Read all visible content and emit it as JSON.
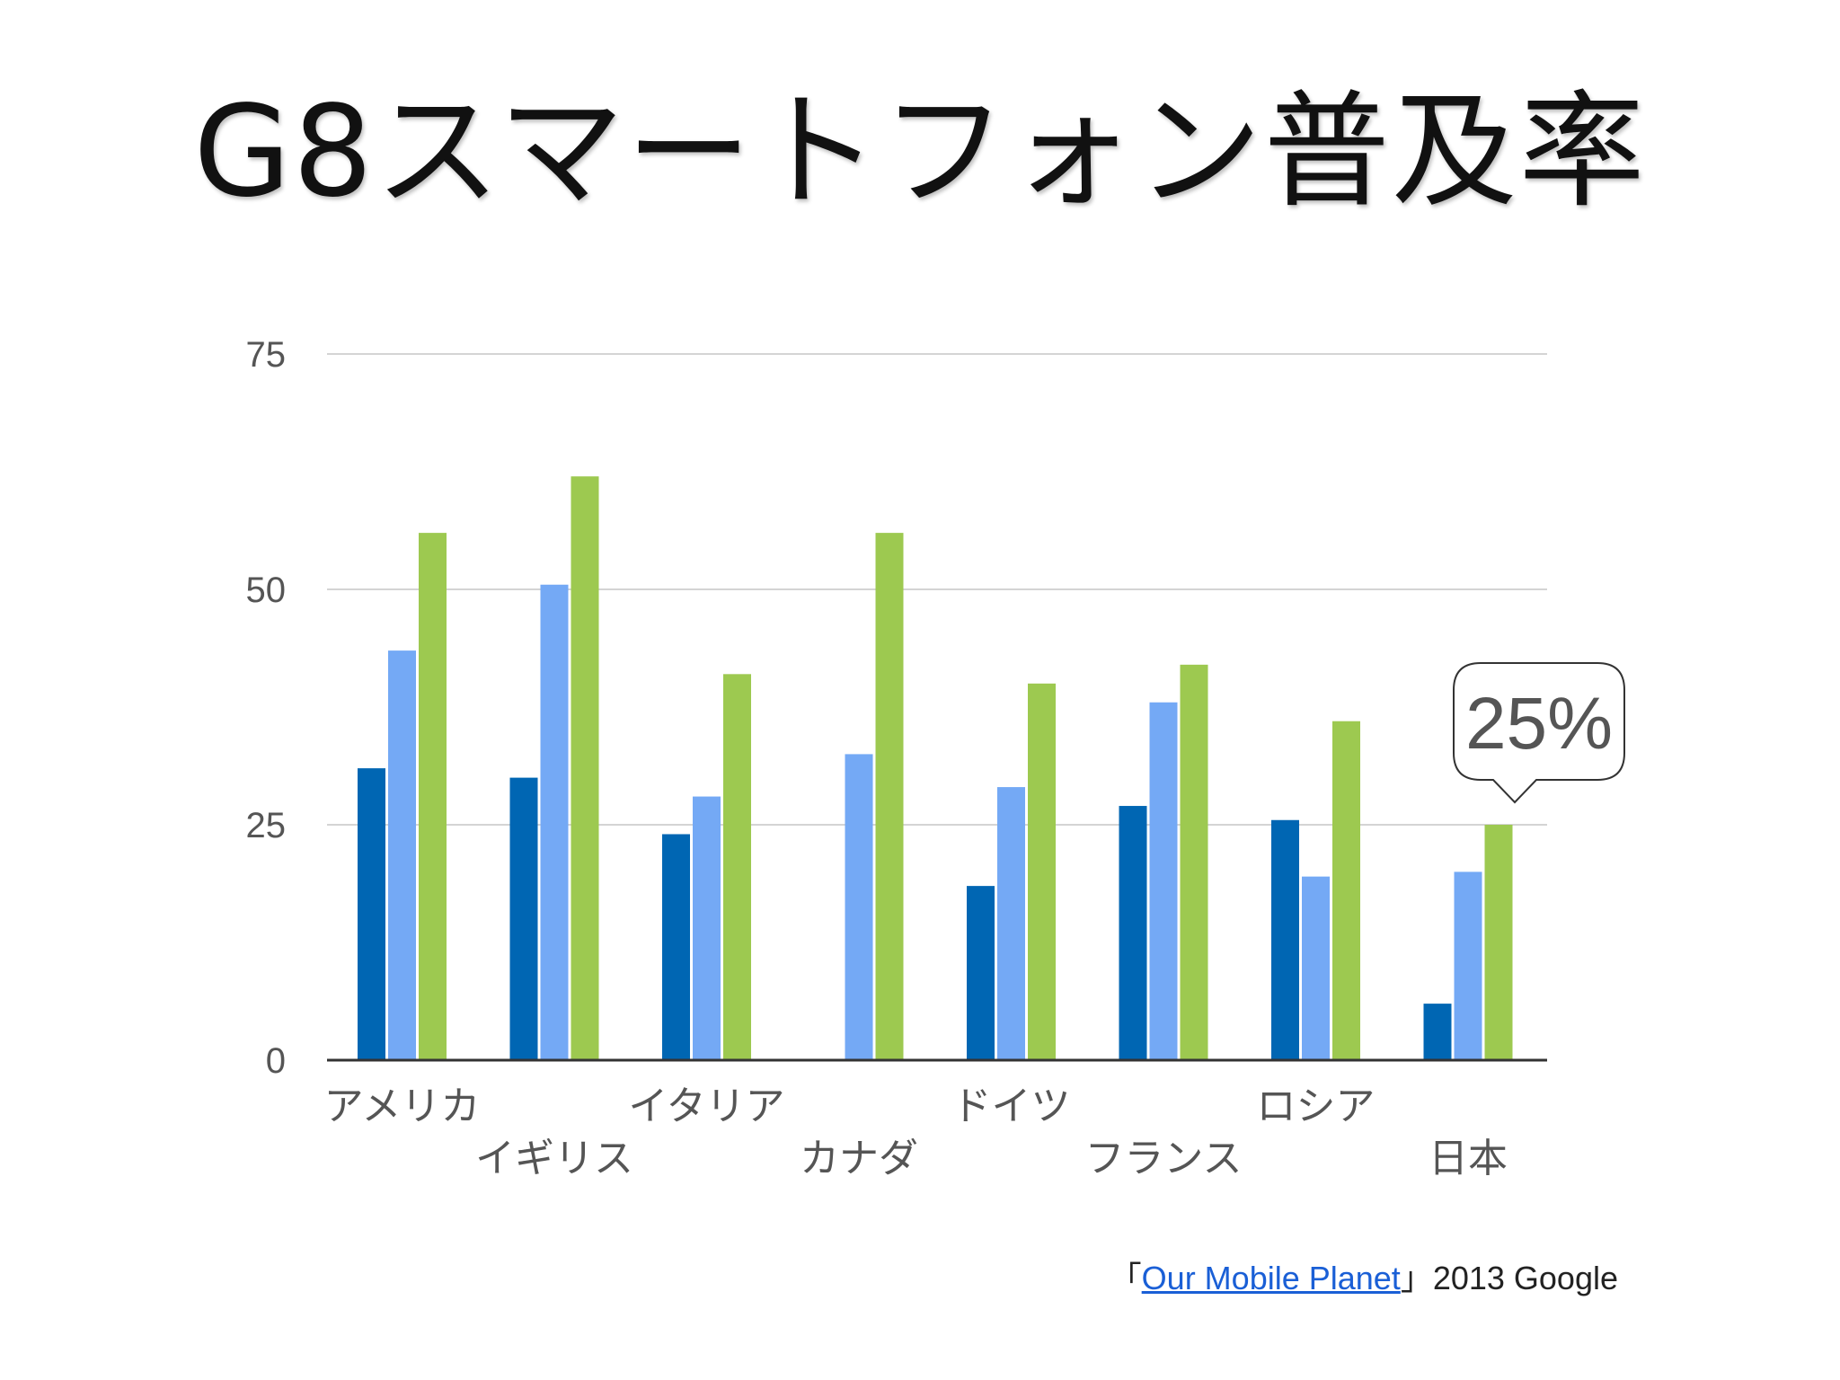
{
  "title": "G8スマートフォン普及率",
  "callout": "25%",
  "source": {
    "prefix": "「",
    "link_text": "Our Mobile Planet",
    "suffix": "」2013 Google"
  },
  "chart_data": {
    "type": "bar",
    "categories": [
      "アメリカ",
      "イギリス",
      "イタリア",
      "カナダ",
      "ドイツ",
      "フランス",
      "ロシア",
      "日本"
    ],
    "series": [
      {
        "color": "#0066b3",
        "values": [
          31,
          30,
          24,
          null,
          18.5,
          27,
          25.5,
          6
        ]
      },
      {
        "color": "#74a9f5",
        "values": [
          43.5,
          50.5,
          28,
          32.5,
          29,
          38,
          19.5,
          20
        ]
      },
      {
        "color": "#9dc950",
        "values": [
          56,
          62,
          41,
          56,
          40,
          42,
          36,
          25
        ]
      }
    ],
    "ylim": [
      0,
      75
    ],
    "yticks": [
      0,
      25,
      50,
      75
    ],
    "grid": true,
    "legend": "none"
  }
}
